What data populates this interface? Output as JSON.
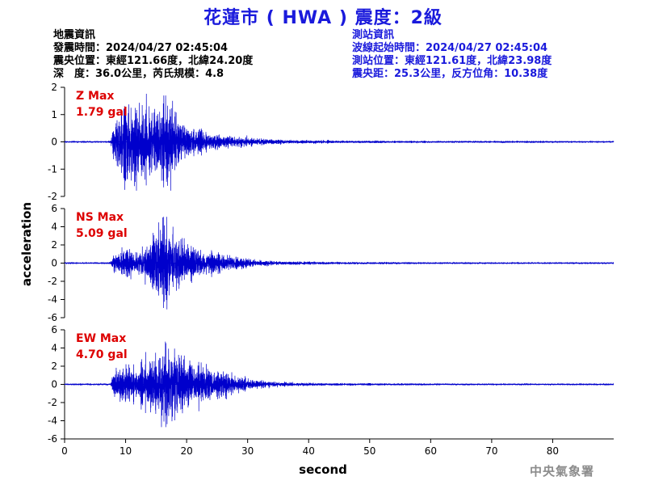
{
  "title": "花蓮市 ( HWA ) 震度：2級",
  "quake_info": {
    "heading": "地震資訊",
    "origin_time": "發震時間：2024/04/27 02:45:04",
    "epicenter": "震央位置：東經121.66度，北緯24.20度",
    "depth_magnitude": "深　度：36.0公里，芮氏規模：4.8"
  },
  "station_info": {
    "heading": "測站資訊",
    "wave_start": "波線起始時間：2024/04/27 02:45:04",
    "station_location": "測站位置：東經121.61度，北緯23.98度",
    "distance_azimuth": "震央距：25.3公里，反方位角：10.38度"
  },
  "agency": "中央氣象署",
  "colors": {
    "title": "#1a1adc",
    "trace": "#0000cc",
    "label": "#dd0000",
    "station_text": "#1a1adc",
    "agency": "#8c8c8c"
  },
  "chart_data": {
    "type": "line",
    "xlabel": "second",
    "ylabel": "acceleration",
    "xlim": [
      0,
      90
    ],
    "x_ticks": [
      0,
      10,
      20,
      30,
      40,
      50,
      60,
      70,
      80
    ],
    "sample_rate_hz": 50,
    "panels": [
      {
        "component": "Z",
        "label": "Z Max",
        "max_text": "1.79 gal",
        "max_value": 1.79,
        "ylim": [
          -2,
          2
        ],
        "y_ticks": [
          2,
          1,
          0,
          -1,
          -2
        ],
        "envelope": {
          "time": [
            0,
            7.5,
            8,
            9,
            10,
            11,
            12,
            13,
            14,
            15,
            16,
            17,
            18,
            19,
            20,
            22,
            24,
            26,
            28,
            30,
            32,
            35,
            40,
            50,
            60,
            75,
            90
          ],
          "amplitude": [
            0.02,
            0.03,
            0.6,
            0.95,
            1.5,
            1.6,
            1.45,
            1.25,
            1.25,
            1.1,
            1.45,
            1.75,
            0.95,
            0.8,
            0.55,
            0.4,
            0.32,
            0.25,
            0.18,
            0.15,
            0.12,
            0.09,
            0.06,
            0.04,
            0.03,
            0.03,
            0.02
          ]
        }
      },
      {
        "component": "NS",
        "label": "NS Max",
        "max_text": "5.09 gal",
        "max_value": 5.09,
        "ylim": [
          -6,
          6
        ],
        "y_ticks": [
          6,
          4,
          2,
          0,
          -2,
          -4,
          -6
        ],
        "envelope": {
          "time": [
            0,
            7.5,
            8,
            9,
            10,
            11,
            12,
            13,
            14,
            15,
            16,
            17,
            18,
            19,
            20,
            22,
            24,
            26,
            28,
            30,
            32,
            35,
            40,
            50,
            60,
            75,
            90
          ],
          "amplitude": [
            0.05,
            0.08,
            0.9,
            1.2,
            1.5,
            1.3,
            1.2,
            1.9,
            2.6,
            3.0,
            4.8,
            3.8,
            3.2,
            2.5,
            2.2,
            1.5,
            1.0,
            0.8,
            0.6,
            0.45,
            0.3,
            0.2,
            0.15,
            0.1,
            0.08,
            0.07,
            0.06
          ]
        }
      },
      {
        "component": "EW",
        "label": "EW Max",
        "max_text": "4.70 gal",
        "max_value": 4.7,
        "ylim": [
          -6,
          6
        ],
        "y_ticks": [
          6,
          4,
          2,
          0,
          -2,
          -4,
          -6
        ],
        "envelope": {
          "time": [
            0,
            7.5,
            8,
            9,
            10,
            11,
            12,
            13,
            14,
            15,
            16,
            17,
            18,
            19,
            20,
            22,
            24,
            26,
            28,
            30,
            32,
            35,
            40,
            50,
            60,
            75,
            90
          ],
          "amplitude": [
            0.05,
            0.08,
            1.2,
            1.6,
            2.2,
            1.9,
            1.7,
            2.1,
            2.4,
            2.6,
            4.6,
            4.0,
            3.6,
            2.8,
            2.7,
            2.0,
            1.6,
            1.2,
            0.9,
            0.6,
            0.4,
            0.25,
            0.15,
            0.1,
            0.08,
            0.07,
            0.06
          ]
        }
      }
    ]
  }
}
